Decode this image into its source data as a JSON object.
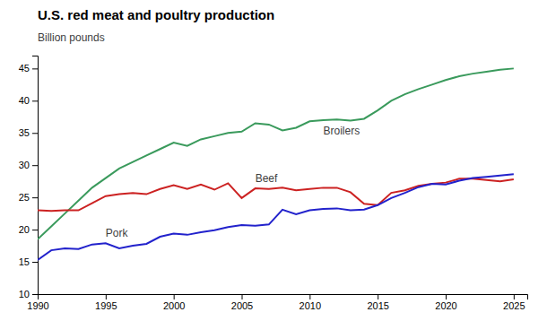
{
  "chart_data": {
    "type": "line",
    "title": "U.S. red meat and poultry production",
    "ylabel": "Billion pounds",
    "x": [
      1990,
      1991,
      1992,
      1993,
      1994,
      1995,
      1996,
      1997,
      1998,
      1999,
      2000,
      2001,
      2002,
      2003,
      2004,
      2005,
      2006,
      2007,
      2008,
      2009,
      2010,
      2011,
      2012,
      2013,
      2014,
      2015,
      2016,
      2017,
      2018,
      2019,
      2020,
      2021,
      2022,
      2023,
      2024,
      2025
    ],
    "series": [
      {
        "name": "Broilers",
        "color": "#3a9a5c",
        "values": [
          18.5,
          20.5,
          22.5,
          24.5,
          26.5,
          28.0,
          29.5,
          30.5,
          31.5,
          32.5,
          33.5,
          33.0,
          34.0,
          34.5,
          35.0,
          35.2,
          36.5,
          36.3,
          35.4,
          35.8,
          36.8,
          37.0,
          37.1,
          36.9,
          37.2,
          38.5,
          40.0,
          41.0,
          41.8,
          42.5,
          43.2,
          43.8,
          44.2,
          44.5,
          44.8,
          45.0
        ]
      },
      {
        "name": "Beef",
        "color": "#cc2222",
        "values": [
          23.0,
          22.9,
          23.0,
          23.0,
          24.1,
          25.2,
          25.5,
          25.7,
          25.5,
          26.3,
          26.9,
          26.3,
          27.0,
          26.2,
          27.2,
          24.9,
          26.4,
          26.3,
          26.5,
          26.1,
          26.3,
          26.5,
          26.5,
          25.8,
          24.0,
          23.8,
          25.7,
          26.1,
          26.8,
          27.1,
          27.3,
          27.9,
          27.9,
          27.7,
          27.5,
          27.8
        ]
      },
      {
        "name": "Pork",
        "color": "#2222cc",
        "values": [
          15.3,
          16.8,
          17.1,
          17.0,
          17.7,
          17.9,
          17.1,
          17.5,
          17.8,
          18.9,
          19.4,
          19.2,
          19.6,
          19.9,
          20.4,
          20.7,
          20.6,
          20.8,
          23.1,
          22.4,
          23.0,
          23.2,
          23.3,
          23.0,
          23.1,
          23.8,
          24.9,
          25.7,
          26.6,
          27.1,
          27.0,
          27.6,
          28.0,
          28.2,
          28.4,
          28.6
        ]
      }
    ],
    "xlim": [
      1990,
      2026
    ],
    "ylim": [
      10,
      47
    ],
    "xticks": [
      1990,
      1995,
      2000,
      2005,
      2010,
      2015,
      2020,
      2025
    ],
    "yticks": [
      10,
      15,
      20,
      25,
      30,
      35,
      40,
      45
    ],
    "grid": false
  }
}
